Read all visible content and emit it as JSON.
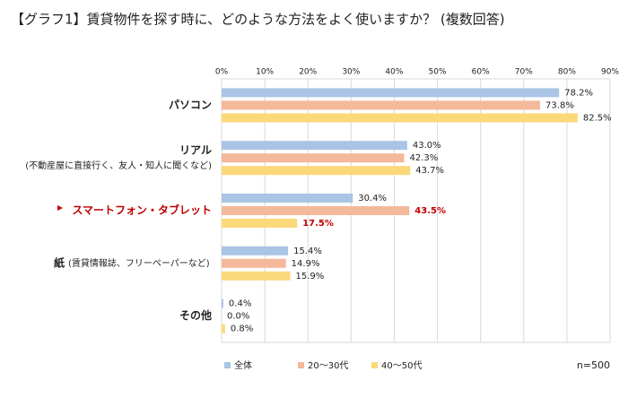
{
  "chart_data": {
    "type": "hbar",
    "title": "【グラフ1】賃貸物件を探す時に、どのような方法をよく使いますか？ (複数回答)",
    "categories": [
      "パソコン",
      "リアル",
      "スマートフォン・タブレット",
      "紙",
      "その他"
    ],
    "category_notes": [
      null,
      "(不動産屋に直接行く、友人・知人に聞くなど)",
      null,
      "(賃貸情報誌、フリーペーパーなど)",
      null
    ],
    "series": [
      {
        "name": "全体",
        "color": "#a9c4e4",
        "values": [
          78.2,
          43.0,
          30.4,
          15.4,
          0.4
        ],
        "value_labels": [
          "78.2%",
          "43.0%",
          "30.4%",
          "15.4%",
          "0.4%"
        ]
      },
      {
        "name": "20～30代",
        "color": "#f4b89a",
        "values": [
          73.8,
          42.3,
          43.5,
          14.9,
          0.0
        ],
        "value_labels": [
          "73.8%",
          "42.3%",
          "43.5%",
          "14.9%",
          "0.0%"
        ]
      },
      {
        "name": "40～50代",
        "color": "#fbd97a",
        "values": [
          82.5,
          43.7,
          17.5,
          15.9,
          0.8
        ],
        "value_labels": [
          "82.5%",
          "43.7%",
          "17.5%",
          "15.9%",
          "0.8%"
        ]
      }
    ],
    "xlim": [
      0,
      90
    ],
    "xticks": [
      {
        "value": 0,
        "label": "0%"
      },
      {
        "value": 10,
        "label": "10%"
      },
      {
        "value": 20,
        "label": "20%"
      },
      {
        "value": 30,
        "label": "30%"
      },
      {
        "value": 40,
        "label": "40%"
      },
      {
        "value": 50,
        "label": "50%"
      },
      {
        "value": 60,
        "label": "60%"
      },
      {
        "value": 70,
        "label": "70%"
      },
      {
        "value": 80,
        "label": "80%"
      },
      {
        "value": 90,
        "label": "90%"
      }
    ],
    "grid": true,
    "highlight": {
      "category": 2,
      "series": [
        1,
        2
      ],
      "color": "#c00000"
    },
    "sample_note": "n=500"
  }
}
